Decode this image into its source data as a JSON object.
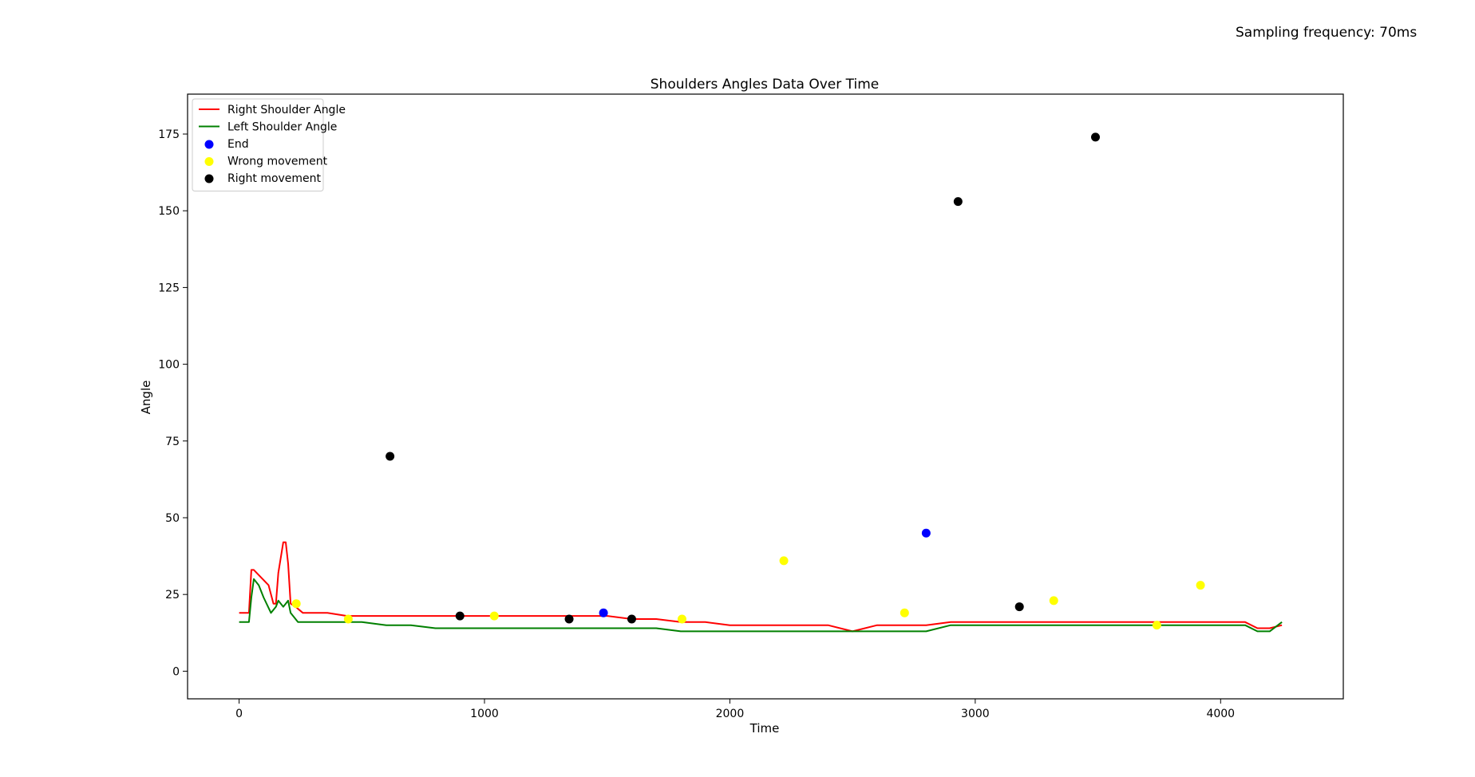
{
  "page": {
    "note": "Sampling frequency: 70ms"
  },
  "chart_data": {
    "type": "line",
    "title": "Shoulders Angles Data Over Time",
    "xlabel": "Time",
    "ylabel": "Angle",
    "xlim": [
      -210,
      4500
    ],
    "ylim": [
      -9,
      188
    ],
    "xticks": [
      0,
      1000,
      2000,
      3000,
      4000
    ],
    "yticks": [
      0,
      25,
      50,
      75,
      100,
      125,
      150,
      175
    ],
    "grid": false,
    "legend_placement": "upper-left",
    "series": [
      {
        "name": "Right Shoulder Angle",
        "color": "#ff0000",
        "x": [
          0,
          40,
          50,
          55,
          60,
          120,
          140,
          150,
          160,
          180,
          190,
          200,
          210,
          230,
          260,
          300,
          360,
          440,
          520,
          600,
          700,
          800,
          900,
          1000,
          1100,
          1200,
          1300,
          1400,
          1500,
          1600,
          1700,
          1800,
          1900,
          2000,
          2100,
          2200,
          2300,
          2400,
          2500,
          2600,
          2700,
          2800,
          2900,
          2950,
          3000,
          3100,
          3200,
          3300,
          3400,
          3500,
          3600,
          3700,
          3800,
          3900,
          4000,
          4100,
          4150,
          4200,
          4250
        ],
        "y": [
          19,
          19,
          33,
          33,
          33,
          28,
          22,
          22,
          32,
          42,
          42,
          35,
          22,
          21,
          19,
          19,
          19,
          18,
          18,
          18,
          18,
          18,
          18,
          18,
          18,
          18,
          18,
          18,
          18,
          17,
          17,
          16,
          16,
          15,
          15,
          15,
          15,
          15,
          13,
          15,
          15,
          15,
          16,
          16,
          16,
          16,
          16,
          16,
          16,
          16,
          16,
          16,
          16,
          16,
          16,
          16,
          14,
          14,
          15
        ]
      },
      {
        "name": "Left Shoulder Angle",
        "color": "#008000",
        "x": [
          0,
          40,
          50,
          60,
          80,
          100,
          130,
          150,
          160,
          180,
          190,
          200,
          210,
          240,
          280,
          320,
          360,
          440,
          500,
          600,
          700,
          800,
          900,
          1000,
          1100,
          1200,
          1300,
          1400,
          1500,
          1600,
          1700,
          1800,
          1900,
          2000,
          2100,
          2200,
          2300,
          2400,
          2500,
          2600,
          2700,
          2800,
          2900,
          3000,
          3100,
          3200,
          3300,
          3400,
          3500,
          3600,
          3700,
          3800,
          3900,
          4000,
          4100,
          4150,
          4200,
          4250
        ],
        "y": [
          16,
          16,
          24,
          30,
          28,
          24,
          19,
          21,
          23,
          21,
          22,
          23,
          19,
          16,
          16,
          16,
          16,
          16,
          16,
          15,
          15,
          14,
          14,
          14,
          14,
          14,
          14,
          14,
          14,
          14,
          14,
          13,
          13,
          13,
          13,
          13,
          13,
          13,
          13,
          13,
          13,
          13,
          15,
          15,
          15,
          15,
          15,
          15,
          15,
          15,
          15,
          15,
          15,
          15,
          15,
          13,
          13,
          16
        ]
      }
    ],
    "markers": [
      {
        "name": "End",
        "color": "#0000ff",
        "x": [
          1485,
          2800
        ],
        "y": [
          19,
          45
        ]
      },
      {
        "name": "Wrong movement",
        "color": "#ffff00",
        "x": [
          233,
          445,
          1040,
          1805,
          2220,
          2712,
          3320,
          3740,
          3918
        ],
        "y": [
          22,
          17,
          18,
          17,
          36,
          19,
          23,
          15,
          28
        ]
      },
      {
        "name": "Right movement",
        "color": "#000000",
        "x": [
          615,
          900,
          1345,
          1600,
          2930,
          3180,
          3490
        ],
        "y": [
          70,
          18,
          17,
          17,
          153,
          21,
          174
        ]
      }
    ]
  }
}
